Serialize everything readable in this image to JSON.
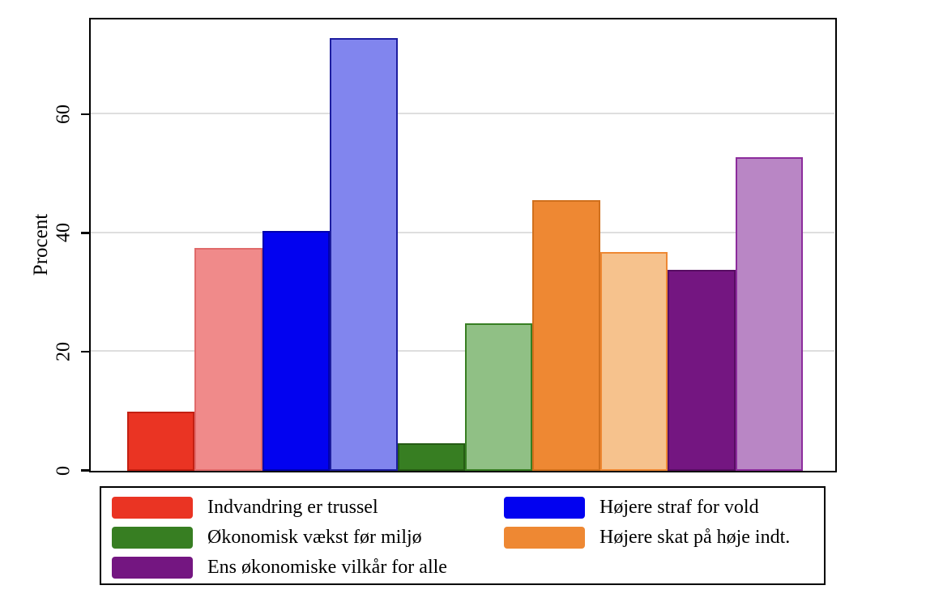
{
  "colors": {
    "background": "#ffffff",
    "axis": "#000000",
    "gridline": "#dedede",
    "text": "#000000"
  },
  "chart_data": {
    "type": "bar",
    "title": "",
    "xlabel": "",
    "ylabel": "Procent",
    "yticks": [
      0,
      20,
      40,
      60
    ],
    "ylim": [
      0,
      75.9
    ],
    "grid": true,
    "legend_position": "bottom",
    "bars": [
      {
        "series": "Indvandring er trussel",
        "shade": "dark",
        "value": 9.9,
        "fill": "#ea3423",
        "stroke": "#c32012"
      },
      {
        "series": "Indvandring er trussel",
        "shade": "light",
        "value": 37.6,
        "fill": "#f08a8a",
        "stroke": "#e06a6a"
      },
      {
        "series": "Højere straf for vold",
        "shade": "dark",
        "value": 40.4,
        "fill": "#0202f0",
        "stroke": "#0000ae"
      },
      {
        "series": "Højere straf for vold",
        "shade": "light",
        "value": 72.9,
        "fill": "#8185ee",
        "stroke": "#1d1da0"
      },
      {
        "series": "Økonomisk vækst før miljø",
        "shade": "dark",
        "value": 4.6,
        "fill": "#377e22",
        "stroke": "#265c14"
      },
      {
        "series": "Økonomisk vækst før miljø",
        "shade": "light",
        "value": 24.8,
        "fill": "#90c085",
        "stroke": "#377e22"
      },
      {
        "series": "Højere skat på høje indt.",
        "shade": "dark",
        "value": 45.6,
        "fill": "#ee8833",
        "stroke": "#d0701d"
      },
      {
        "series": "Højere skat på høje indt.",
        "shade": "light",
        "value": 36.9,
        "fill": "#f6c28d",
        "stroke": "#ee8833"
      },
      {
        "series": "Ens økonomiske vilkår for alle",
        "shade": "dark",
        "value": 33.9,
        "fill": "#741681",
        "stroke": "#570d62"
      },
      {
        "series": "Ens økonomiske vilkår for alle",
        "shade": "light",
        "value": 52.9,
        "fill": "#b986c5",
        "stroke": "#8c2c9c"
      }
    ],
    "legend": {
      "columns": [
        [
          {
            "label": "Indvandring er trussel",
            "color": "#ea3423"
          },
          {
            "label": "Økonomisk vækst før miljø",
            "color": "#377e22"
          },
          {
            "label": "Ens økonomiske vilkår for alle",
            "color": "#741681"
          }
        ],
        [
          {
            "label": "Højere straf for vold",
            "color": "#0202f0"
          },
          {
            "label": "Højere skat på høje indt.",
            "color": "#ee8833"
          }
        ]
      ]
    }
  }
}
